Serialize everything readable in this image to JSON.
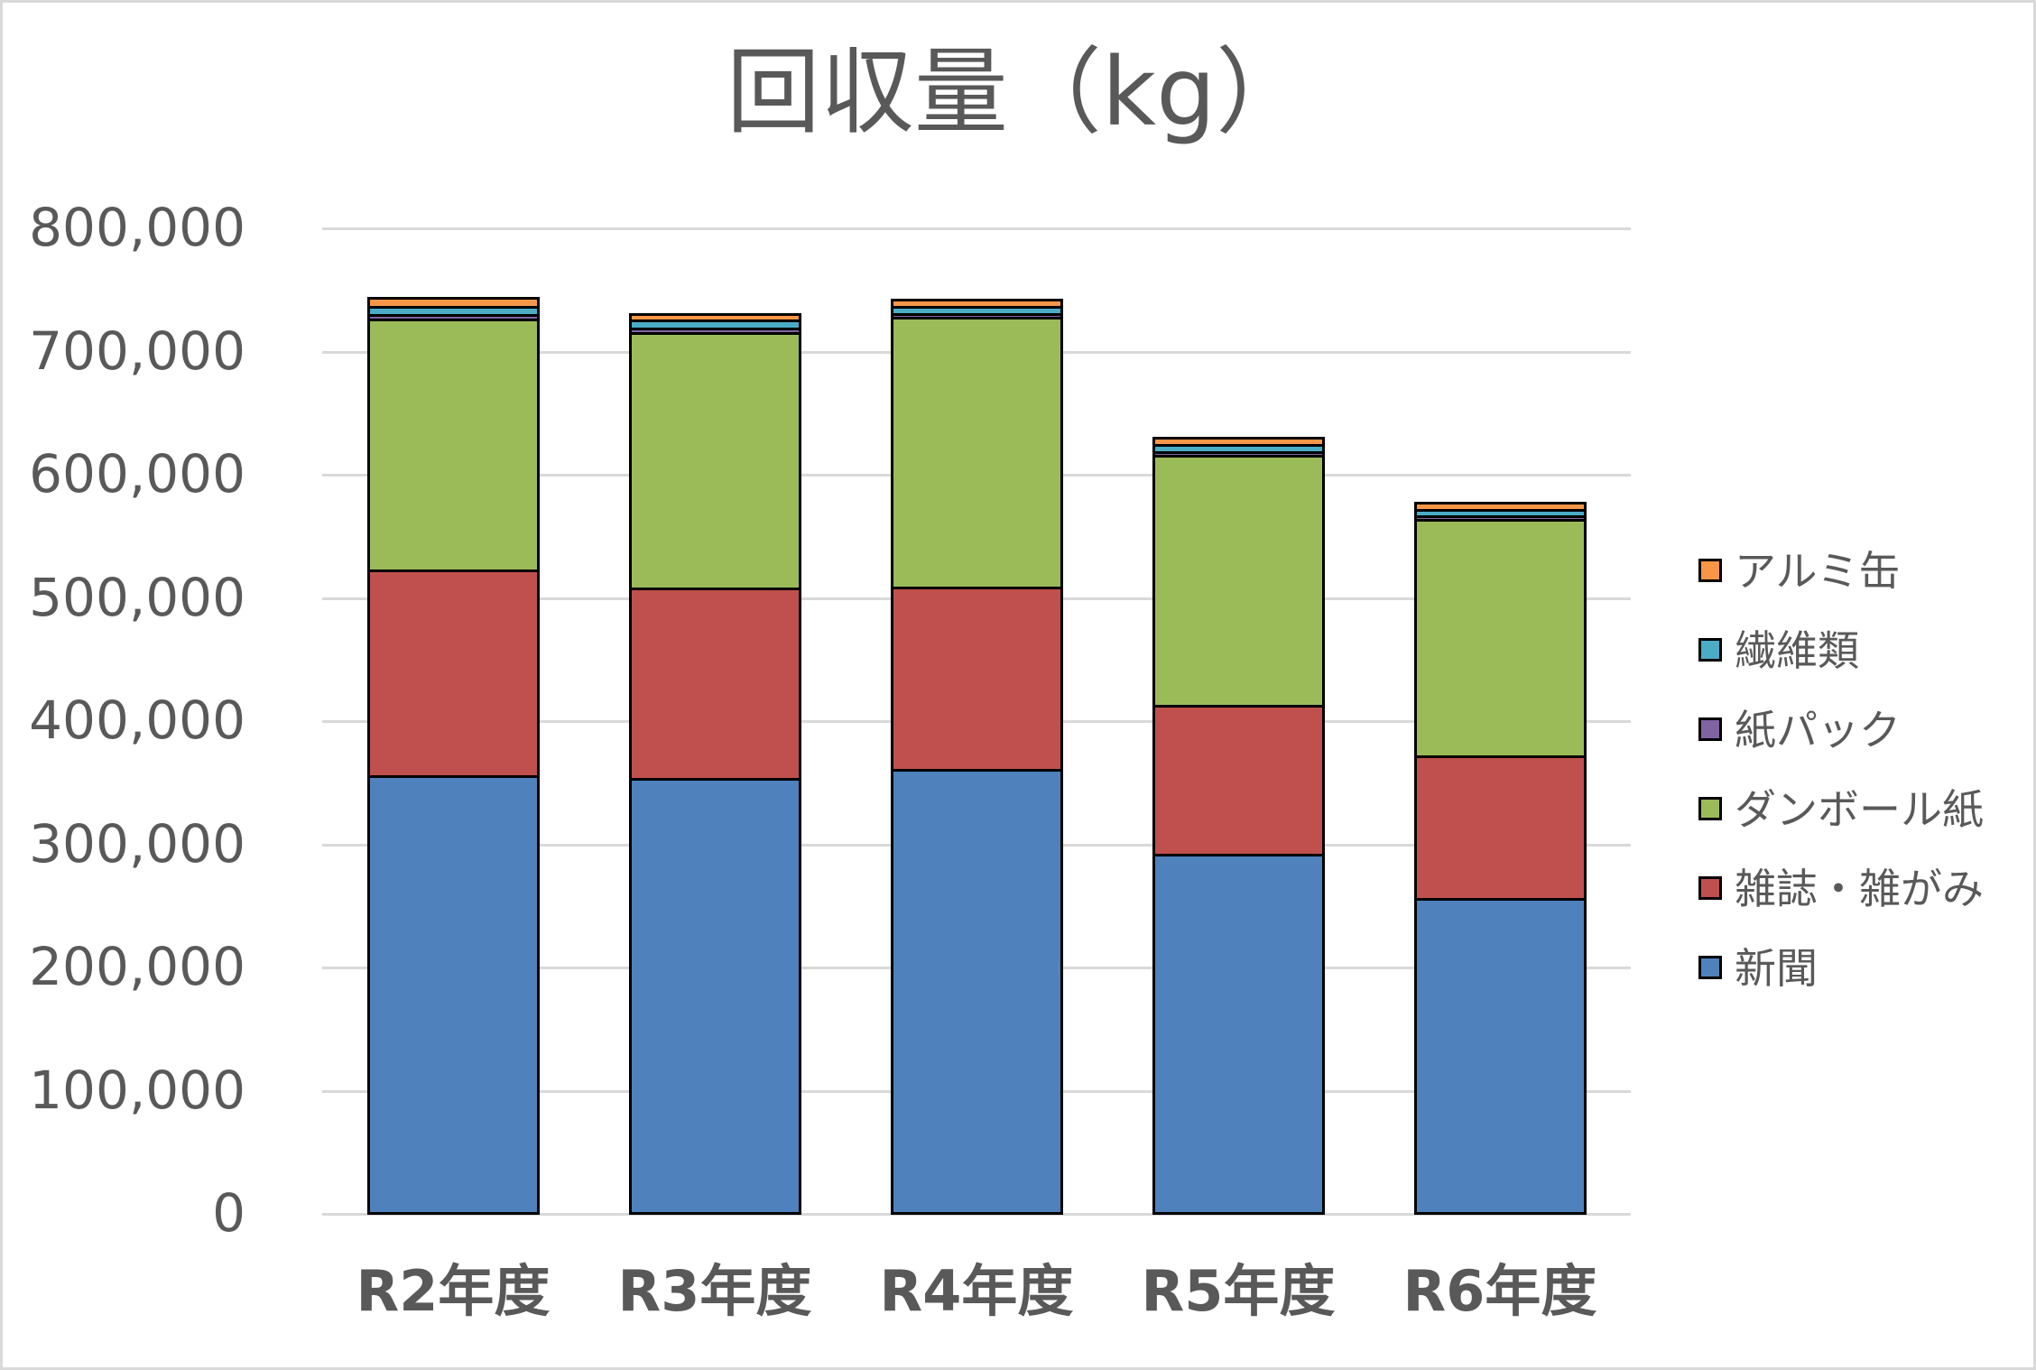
{
  "chart_data": {
    "type": "bar",
    "stacked": true,
    "title": "回収量（kg）",
    "xlabel": "",
    "ylabel": "",
    "ylim": [
      0,
      800000
    ],
    "yticks": [
      "0",
      "100,000",
      "200,000",
      "300,000",
      "400,000",
      "500,000",
      "600,000",
      "700,000",
      "800,000"
    ],
    "grid": true,
    "legend_position": "right",
    "categories": [
      "R2年度",
      "R3年度",
      "R4年度",
      "R5年度",
      "R6年度"
    ],
    "series": [
      {
        "name": "新聞",
        "color": "#4f81bd",
        "values": [
          355000,
          353000,
          360000,
          291000,
          255000
        ]
      },
      {
        "name": "雑誌・雑がみ",
        "color": "#c0504d",
        "values": [
          167000,
          154000,
          148000,
          121000,
          116000
        ]
      },
      {
        "name": "ダンボール紙",
        "color": "#9bbb59",
        "values": [
          204000,
          208000,
          219000,
          203000,
          192000
        ]
      },
      {
        "name": "紙パック",
        "color": "#8064a2",
        "values": [
          3000,
          3000,
          3000,
          3000,
          3000
        ]
      },
      {
        "name": "繊維類",
        "color": "#4bacc6",
        "values": [
          7000,
          7000,
          6000,
          6000,
          5000
        ]
      },
      {
        "name": "アルミ缶",
        "color": "#f79646",
        "values": [
          7000,
          5000,
          6000,
          6000,
          6000
        ]
      }
    ],
    "legend_order": [
      "アルミ缶",
      "繊維類",
      "紙パック",
      "ダンボール紙",
      "雑誌・雑がみ",
      "新聞"
    ]
  }
}
